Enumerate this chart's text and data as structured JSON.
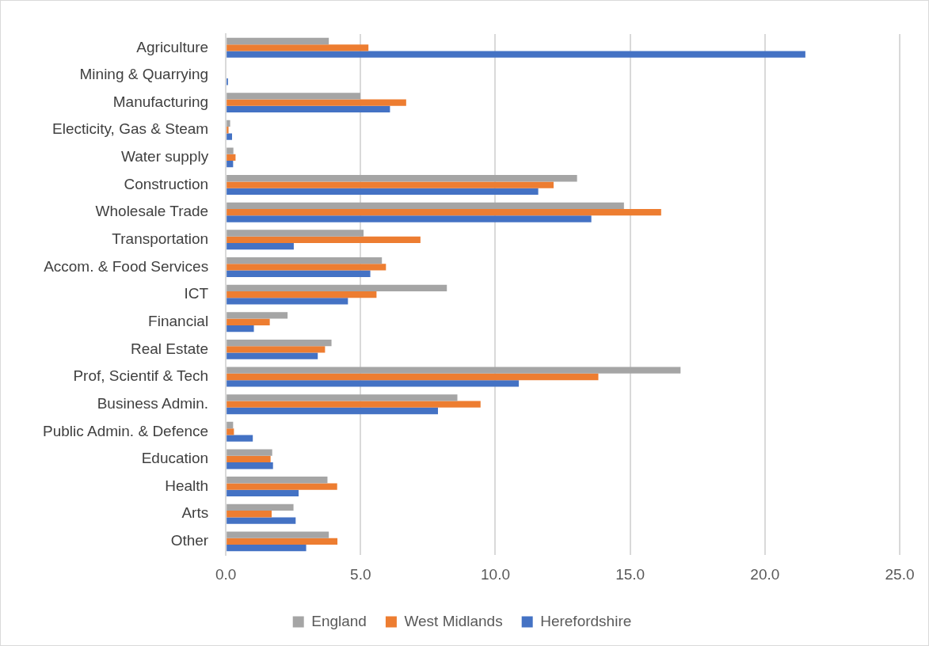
{
  "chart_data": {
    "type": "bar",
    "orientation": "horizontal",
    "categories": [
      "Agriculture",
      "Mining & Quarrying",
      "Manufacturing",
      "Electicity, Gas & Steam",
      "Water supply",
      "Construction",
      "Wholesale Trade",
      "Transportation",
      "Accom. & Food Services",
      "ICT",
      "Financial",
      "Real Estate",
      "Prof, Scientif & Tech",
      "Business Admin.",
      "Public Admin. & Defence",
      "Education",
      "Health",
      "Arts",
      "Other"
    ],
    "series": [
      {
        "name": "England",
        "color": "#a5a5a5",
        "values": [
          3.82,
          null,
          4.99,
          0.16,
          0.28,
          13.03,
          14.77,
          5.11,
          5.79,
          8.2,
          2.29,
          3.92,
          16.87,
          8.59,
          0.27,
          1.72,
          3.77,
          2.51,
          3.82
        ]
      },
      {
        "name": "West Midlands",
        "color": "#ed7d31",
        "values": [
          5.29,
          null,
          6.69,
          0.1,
          0.36,
          12.16,
          16.15,
          7.22,
          5.94,
          5.59,
          1.63,
          3.68,
          13.82,
          9.45,
          0.3,
          1.66,
          4.13,
          1.7,
          4.14
        ]
      },
      {
        "name": "Herefordshire",
        "color": "#4472c4",
        "values": [
          21.5,
          0.08,
          6.09,
          0.23,
          0.27,
          11.59,
          13.56,
          2.52,
          5.36,
          4.53,
          1.04,
          3.41,
          10.87,
          7.87,
          1,
          1.75,
          2.7,
          2.59,
          2.98
        ]
      }
    ],
    "xlim": [
      0,
      25
    ],
    "xticks": [
      {
        "value": 0,
        "label": "0.0"
      },
      {
        "value": 5,
        "label": "5.0"
      },
      {
        "value": 10,
        "label": "10.0"
      },
      {
        "value": 15,
        "label": "15.0"
      },
      {
        "value": 20,
        "label": "20.0"
      },
      {
        "value": 25,
        "label": "25.0"
      }
    ],
    "grid": "x",
    "legend": "bottom"
  }
}
